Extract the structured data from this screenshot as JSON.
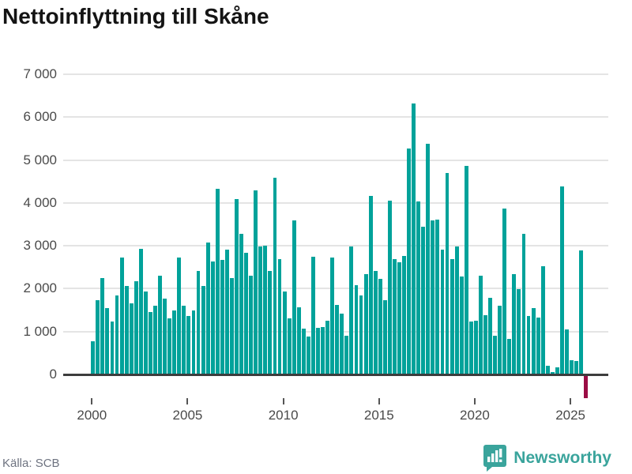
{
  "title": "Nettoinflyttning till Skåne",
  "source": "Källa: SCB",
  "logo": {
    "text": "Newsworthy",
    "icon": "speech-bubble-bar-chart-icon"
  },
  "colors": {
    "bar_positive": "#00a29a",
    "bar_negative": "#9b0d45",
    "gridline": "#e4e4e4",
    "zero_line": "#3d3d3d",
    "axis_text": "#4a4a4a",
    "title_text": "#141414",
    "source_text": "#6e7380",
    "logo_teal": "#3aa49c"
  },
  "y_axis": {
    "ticks": [
      {
        "value": 0,
        "label": "0"
      },
      {
        "value": 1000,
        "label": "1 000"
      },
      {
        "value": 2000,
        "label": "2 000"
      },
      {
        "value": 3000,
        "label": "3 000"
      },
      {
        "value": 4000,
        "label": "4 000"
      },
      {
        "value": 5000,
        "label": "5 000"
      },
      {
        "value": 6000,
        "label": "6 000"
      },
      {
        "value": 7000,
        "label": "7 000"
      }
    ]
  },
  "x_axis": {
    "ticks": [
      {
        "year": 2000,
        "label": "2000"
      },
      {
        "year": 2005,
        "label": "2005"
      },
      {
        "year": 2010,
        "label": "2010"
      },
      {
        "year": 2015,
        "label": "2015"
      },
      {
        "year": 2020,
        "label": "2020"
      },
      {
        "year": 2025,
        "label": "2025"
      }
    ]
  },
  "chart_data": {
    "type": "bar",
    "title": "Nettoinflyttning till Skåne",
    "frequency": "quarterly",
    "xlabel": "",
    "ylabel": "",
    "ylim": [
      -700,
      7000
    ],
    "grid": true,
    "series": [
      {
        "year": 2000,
        "values": [
          780,
          1740,
          2250,
          1540
        ]
      },
      {
        "year": 2001,
        "values": [
          1230,
          1850,
          2730,
          2070
        ]
      },
      {
        "year": 2002,
        "values": [
          1650,
          2170,
          2930,
          1940
        ]
      },
      {
        "year": 2003,
        "values": [
          1460,
          1610,
          2300,
          1760
        ]
      },
      {
        "year": 2004,
        "values": [
          1310,
          1490,
          2730,
          1610
        ]
      },
      {
        "year": 2005,
        "values": [
          1370,
          1500,
          2420,
          2070
        ]
      },
      {
        "year": 2006,
        "values": [
          3080,
          2630,
          4330,
          2670
        ]
      },
      {
        "year": 2007,
        "values": [
          2910,
          2250,
          4090,
          3280
        ]
      },
      {
        "year": 2008,
        "values": [
          2830,
          2310,
          4290,
          2990
        ]
      },
      {
        "year": 2009,
        "values": [
          3010,
          2420,
          4580,
          2680
        ]
      },
      {
        "year": 2010,
        "values": [
          1940,
          1300,
          3600,
          1560
        ]
      },
      {
        "year": 2011,
        "values": [
          1070,
          880,
          2750,
          1090
        ]
      },
      {
        "year": 2012,
        "values": [
          1100,
          1250,
          2720,
          1620
        ]
      },
      {
        "year": 2013,
        "values": [
          1420,
          900,
          2980,
          2080
        ]
      },
      {
        "year": 2014,
        "values": [
          1840,
          2330,
          4170,
          2410
        ]
      },
      {
        "year": 2015,
        "values": [
          2220,
          1740,
          4050,
          2680
        ]
      },
      {
        "year": 2016,
        "values": [
          2620,
          2770,
          5260,
          6310
        ]
      },
      {
        "year": 2017,
        "values": [
          4040,
          3450,
          5370,
          3590
        ]
      },
      {
        "year": 2018,
        "values": [
          3610,
          2910,
          4690,
          2680
        ]
      },
      {
        "year": 2019,
        "values": [
          2980,
          2290,
          4870,
          1230
        ]
      },
      {
        "year": 2020,
        "values": [
          1250,
          2300,
          1390,
          1780
        ]
      },
      {
        "year": 2021,
        "values": [
          900,
          1610,
          3870,
          820
        ]
      },
      {
        "year": 2022,
        "values": [
          2340,
          1990,
          3280,
          1370
        ]
      },
      {
        "year": 2023,
        "values": [
          1540,
          1330,
          2520,
          200
        ]
      },
      {
        "year": 2024,
        "values": [
          60,
          160,
          4390,
          1050
        ]
      },
      {
        "year": 2025,
        "values": [
          340,
          320,
          2900,
          -520
        ]
      }
    ]
  }
}
